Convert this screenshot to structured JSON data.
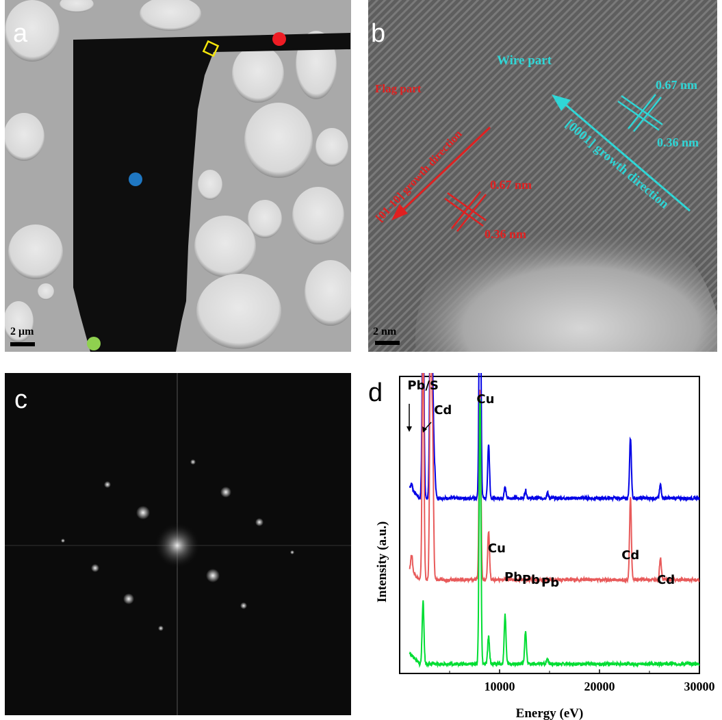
{
  "panels": {
    "a": {
      "letter": "a",
      "scale_bar": "2 μm",
      "markers": [
        {
          "name": "red-spot",
          "color": "#ee1c24"
        },
        {
          "name": "blue-spot",
          "color": "#1f77c2"
        },
        {
          "name": "green-spot",
          "color": "#8fd14f"
        }
      ],
      "roi_color": "#f5e60a"
    },
    "b": {
      "letter": "b",
      "scale_bar": "2 nm",
      "wire_label": "Wire part",
      "flag_label": "Flag part",
      "wire_direction": "[0001] growth direction",
      "flag_direction": "[01-10] growth direction",
      "wire_spacings": [
        "0.67 nm",
        "0.36 nm"
      ],
      "flag_spacings": [
        "0.67 nm",
        "0.36 nm"
      ],
      "wire_color": "#2fd6d6",
      "flag_color": "#e02020"
    },
    "c": {
      "letter": "c"
    },
    "d": {
      "letter": "d"
    }
  },
  "chart_data": {
    "type": "line",
    "xlabel": "Energy (eV)",
    "ylabel": "Intensity (a.u.)",
    "xlim": [
      0,
      30000
    ],
    "xticks": [
      "10000",
      "20000",
      "30000"
    ],
    "series": [
      {
        "color": "#0000e6",
        "baseline": 0.64,
        "peaks": [
          [
            1200,
            0.02
          ],
          [
            2340,
            0.78
          ],
          [
            3100,
            0.91
          ],
          [
            3300,
            0.4
          ],
          [
            3500,
            0.1
          ],
          [
            8040,
            1.0
          ],
          [
            8900,
            0.2
          ],
          [
            10550,
            0.04
          ],
          [
            12600,
            0.03
          ],
          [
            14800,
            0.02
          ],
          [
            23100,
            0.22
          ],
          [
            26100,
            0.05
          ]
        ]
      },
      {
        "color": "#e85a5a",
        "baseline": 0.34,
        "peaks": [
          [
            1200,
            0.06
          ],
          [
            2340,
            0.92
          ],
          [
            3100,
            1.0
          ],
          [
            3300,
            0.5
          ],
          [
            8040,
            0.7
          ],
          [
            8900,
            0.18
          ],
          [
            23100,
            0.3
          ],
          [
            26100,
            0.08
          ]
        ]
      },
      {
        "color": "#00dd33",
        "baseline": 0.03,
        "peaks": [
          [
            2340,
            0.23
          ],
          [
            8040,
            0.98
          ],
          [
            8900,
            0.1
          ],
          [
            10550,
            0.18
          ],
          [
            12600,
            0.12
          ],
          [
            14800,
            0.02
          ]
        ]
      }
    ],
    "annotations": [
      {
        "text": "Pb/S",
        "x": 2340
      },
      {
        "text": "Cd",
        "x": 3100
      },
      {
        "text": "Cu",
        "x": 8040
      },
      {
        "text": "Cu",
        "x": 8900
      },
      {
        "text": "Pb",
        "x": 10550
      },
      {
        "text": "Pb",
        "x": 12600
      },
      {
        "text": "Pb",
        "x": 14800
      },
      {
        "text": "Cd",
        "x": 23100
      },
      {
        "text": "Cd",
        "x": 26100
      }
    ]
  }
}
